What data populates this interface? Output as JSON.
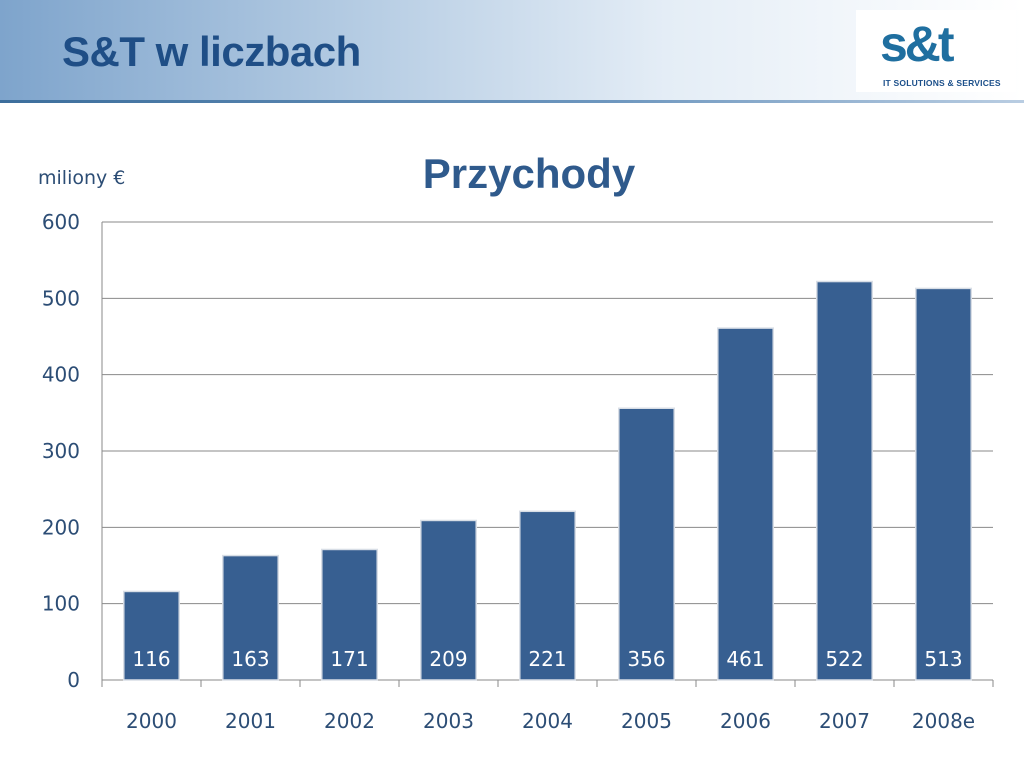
{
  "slide": {
    "title": "S&T w liczbach"
  },
  "logo": {
    "mark": "s&t",
    "tagline": "IT SOLUTIONS & SERVICES"
  },
  "chart_data": {
    "type": "bar",
    "title": "Przychody",
    "unit_label": "miliony €",
    "xlabel": "",
    "ylabel": "",
    "categories": [
      "2000",
      "2001",
      "2002",
      "2003",
      "2004",
      "2005",
      "2006",
      "2007",
      "2008e"
    ],
    "values": [
      116,
      163,
      171,
      209,
      221,
      356,
      461,
      522,
      513
    ],
    "data_labels": [
      "116",
      "163",
      "171",
      "209",
      "221",
      "356",
      "461",
      "522",
      "513"
    ],
    "ylim": [
      0,
      600
    ],
    "yticks": [
      0,
      100,
      200,
      300,
      400,
      500,
      600
    ],
    "grid": true,
    "legend": "none",
    "bar_color": "#375f91"
  }
}
